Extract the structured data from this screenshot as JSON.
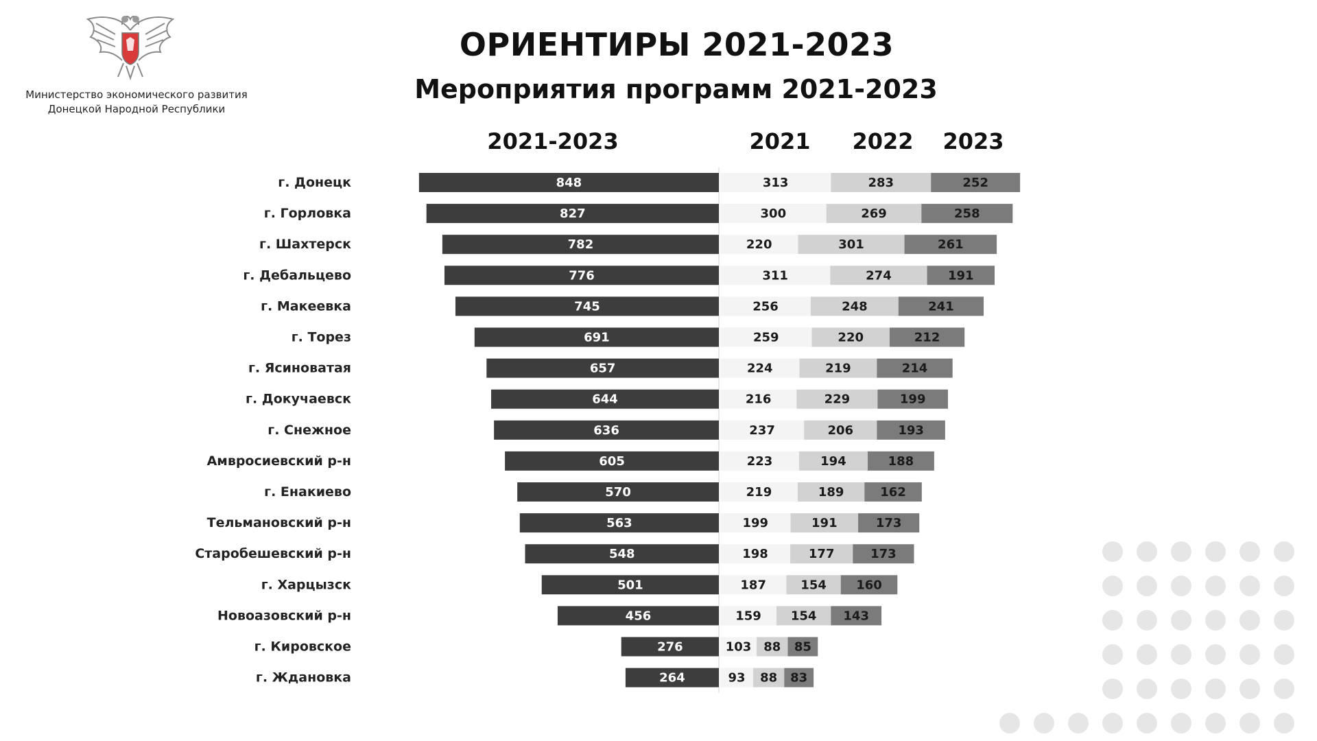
{
  "header": {
    "ministry_line1": "Министерство экономического развития",
    "ministry_line2": "Донецкой Народной Республики",
    "title": "ОРИЕНТИРЫ 2021-2023",
    "subtitle": "Мероприятия программ 2021-2023"
  },
  "colors": {
    "total_bar": "#3d3d3d",
    "year_2021": "#f4f4f4",
    "year_2022": "#d2d2d2",
    "year_2023": "#7b7b7b",
    "dots": "#e6e6e6"
  },
  "chart_data": {
    "type": "bar",
    "columns": [
      "2021-2023",
      "2021",
      "2022",
      "2023"
    ],
    "categories": [
      "г. Донецк",
      "г. Горловка",
      "г. Шахтерск",
      "г. Дебальцево",
      "г. Макеевка",
      "г. Торез",
      "г. Ясиноватая",
      "г. Докучаевск",
      "г. Снежное",
      "Амвросиевский р-н",
      "г. Енакиево",
      "Тельмановский р-н",
      "Старобешевский р-н",
      "г. Харцызск",
      "Новоазовский р-н",
      "г. Кировское",
      "г. Ждановка"
    ],
    "series": [
      {
        "name": "2021-2023",
        "values": [
          848,
          827,
          782,
          776,
          745,
          691,
          657,
          644,
          636,
          605,
          570,
          563,
          548,
          501,
          456,
          276,
          264
        ]
      },
      {
        "name": "2021",
        "values": [
          313,
          300,
          220,
          311,
          256,
          259,
          224,
          216,
          237,
          223,
          219,
          199,
          198,
          187,
          159,
          103,
          93
        ]
      },
      {
        "name": "2022",
        "values": [
          283,
          269,
          301,
          274,
          248,
          220,
          219,
          229,
          206,
          194,
          189,
          191,
          177,
          154,
          154,
          88,
          88
        ]
      },
      {
        "name": "2023",
        "values": [
          252,
          258,
          261,
          191,
          241,
          212,
          214,
          199,
          193,
          188,
          162,
          173,
          173,
          160,
          143,
          85,
          83
        ]
      }
    ]
  }
}
